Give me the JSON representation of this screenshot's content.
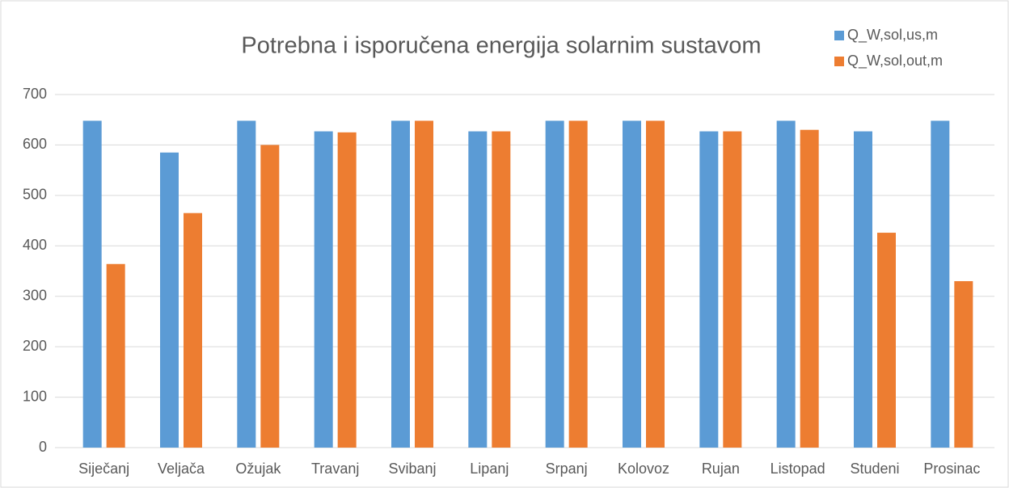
{
  "chart_data": {
    "type": "bar",
    "title": "Potrebna i isporučena energija solarnim sustavom",
    "categories": [
      "Siječanj",
      "Veljača",
      "Ožujak",
      "Travanj",
      "Svibanj",
      "Lipanj",
      "Srpanj",
      "Kolovoz",
      "Rujan",
      "Listopad",
      "Studeni",
      "Prosinac"
    ],
    "series": [
      {
        "name": "Q_W,sol,us,m",
        "color": "#5b9bd5",
        "values": [
          648,
          585,
          648,
          627,
          648,
          627,
          648,
          648,
          627,
          648,
          627,
          648
        ]
      },
      {
        "name": "Q_W,sol,out,m",
        "color": "#ed7d31",
        "values": [
          364,
          465,
          600,
          625,
          648,
          627,
          648,
          648,
          627,
          630,
          426,
          330
        ]
      }
    ],
    "ylim": [
      0,
      700
    ],
    "yticks": [
      0,
      100,
      200,
      300,
      400,
      500,
      600,
      700
    ],
    "grid": true,
    "legend": "top-right"
  }
}
